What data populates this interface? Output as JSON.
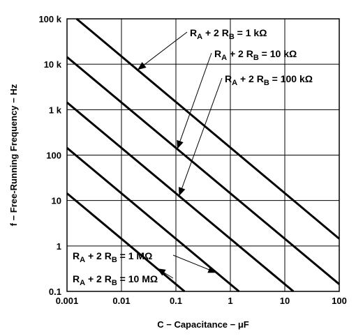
{
  "chart_data": {
    "type": "line",
    "title": "",
    "xlabel": "C − Capacitance − μF",
    "ylabel": "f − Free-Running Frequency − Hz",
    "x_scale": "log",
    "y_scale": "log",
    "xlim": [
      0.001,
      100
    ],
    "ylim": [
      0.1,
      100000
    ],
    "grid": true,
    "x_ticks": [
      {
        "value": 0.001,
        "label": "0.001"
      },
      {
        "value": 0.01,
        "label": "0.01"
      },
      {
        "value": 0.1,
        "label": "0.1"
      },
      {
        "value": 1,
        "label": "1"
      },
      {
        "value": 10,
        "label": "10"
      },
      {
        "value": 100,
        "label": "100"
      }
    ],
    "y_ticks": [
      {
        "value": 0.1,
        "label": "0.1"
      },
      {
        "value": 1,
        "label": "1"
      },
      {
        "value": 10,
        "label": "10"
      },
      {
        "value": 100,
        "label": "100"
      },
      {
        "value": 1000,
        "label": "1 k"
      },
      {
        "value": 10000,
        "label": "10 k"
      },
      {
        "value": 100000,
        "label": "100 k"
      }
    ],
    "series": [
      {
        "name": "R_A + 2 R_B = 1 kΩ",
        "points": [
          [
            0.0015,
            100000
          ],
          [
            100,
            1.44
          ]
        ]
      },
      {
        "name": "R_A + 2 R_B = 10 kΩ",
        "points": [
          [
            0.001,
            14400
          ],
          [
            100,
            0.144
          ]
        ]
      },
      {
        "name": "R_A + 2 R_B = 100 kΩ",
        "points": [
          [
            0.001,
            1440
          ],
          [
            14.4,
            0.1
          ]
        ]
      },
      {
        "name": "R_A + 2 R_B = 1 MΩ",
        "points": [
          [
            0.001,
            144
          ],
          [
            1.44,
            0.1
          ]
        ]
      },
      {
        "name": "R_A + 2 R_B = 10 MΩ",
        "points": [
          [
            0.001,
            14.4
          ],
          [
            0.144,
            0.1
          ]
        ]
      }
    ],
    "annotations": [
      {
        "series_index": 0,
        "prefix": "R",
        "sub1": "A",
        "mid": " + 2 R",
        "sub2": "B",
        "suffix": " = 1 kΩ"
      },
      {
        "series_index": 1,
        "prefix": "R",
        "sub1": "A",
        "mid": " + 2 R",
        "sub2": "B",
        "suffix": " = 10 kΩ"
      },
      {
        "series_index": 2,
        "prefix": "R",
        "sub1": "A",
        "mid": " + 2 R",
        "sub2": "B",
        "suffix": " = 100 kΩ"
      },
      {
        "series_index": 3,
        "prefix": "R",
        "sub1": "A",
        "mid": " + 2 R",
        "sub2": "B",
        "suffix": " = 1 MΩ"
      },
      {
        "series_index": 4,
        "prefix": "R",
        "sub1": "A",
        "mid": " + 2 R",
        "sub2": "B",
        "suffix": " = 10 MΩ"
      }
    ]
  }
}
